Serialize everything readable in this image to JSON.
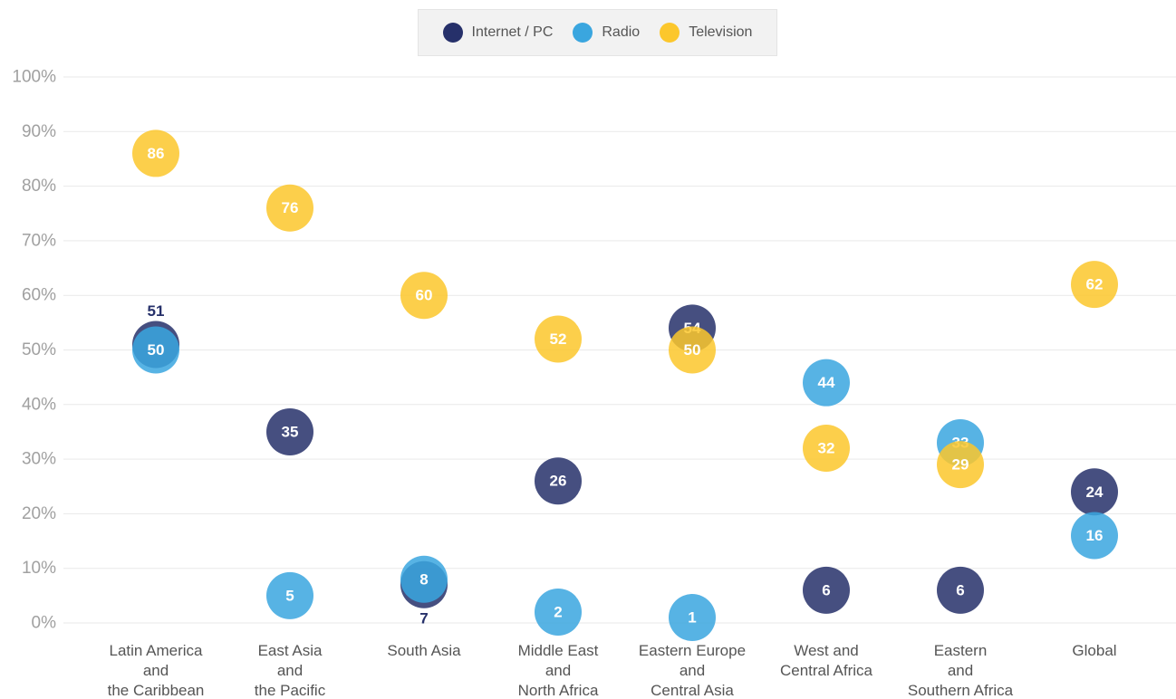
{
  "chart_data": {
    "type": "dot",
    "categories": [
      "Latin America\nand\nthe Caribbean",
      "East Asia\nand\nthe Pacific",
      "South Asia",
      "Middle East\nand\nNorth Africa",
      "Eastern Europe\nand\nCentral Asia",
      "West and\nCentral Africa",
      "Eastern\nand\nSouthern Africa",
      "Global"
    ],
    "series": [
      {
        "name": "Internet / PC",
        "color": "#26306a",
        "values": [
          51,
          35,
          7,
          26,
          54,
          6,
          6,
          24
        ]
      },
      {
        "name": "Radio",
        "color": "#3aa6df",
        "values": [
          50,
          5,
          8,
          2,
          1,
          44,
          33,
          16
        ]
      },
      {
        "name": "Television",
        "color": "#fcc72c",
        "values": [
          86,
          76,
          60,
          52,
          50,
          32,
          29,
          62
        ]
      }
    ],
    "ylim": [
      0,
      100
    ],
    "yticks": [
      {
        "value": 0,
        "label": "0%"
      },
      {
        "value": 10,
        "label": "10%"
      },
      {
        "value": 20,
        "label": "20%"
      },
      {
        "value": 30,
        "label": "30%"
      },
      {
        "value": 40,
        "label": "40%"
      },
      {
        "value": 50,
        "label": "50%"
      },
      {
        "value": 60,
        "label": "60%"
      },
      {
        "value": 70,
        "label": "70%"
      },
      {
        "value": 80,
        "label": "80%"
      },
      {
        "value": 90,
        "label": "90%"
      },
      {
        "value": 100,
        "label": "100%"
      }
    ],
    "grid": true,
    "legend": "top"
  }
}
